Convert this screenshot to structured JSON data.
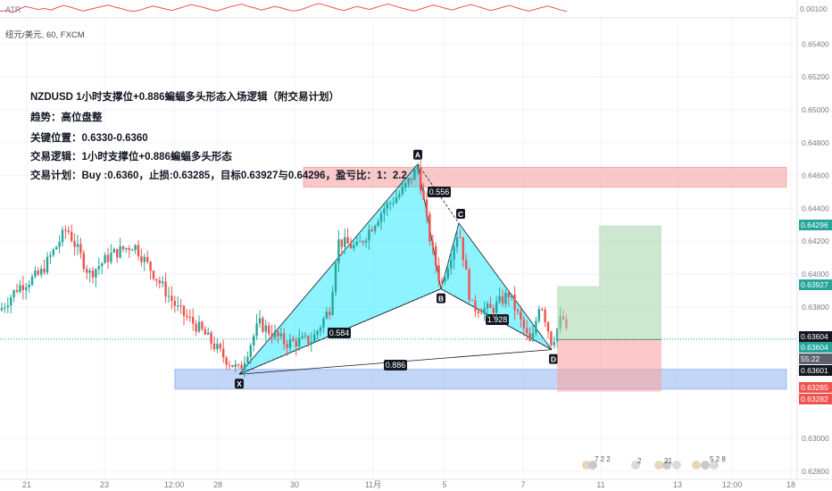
{
  "header": {
    "atr_label": "ATR",
    "symbol_line": "纽元/美元, 60, FXCM"
  },
  "annotations": {
    "title": "NZDUSD 1小时支撑位+0.886蝙蝠多头形态入场逻辑（附交易计划）",
    "trend": "趋势：高位盘整",
    "key_level": "关键位置：0.6330-0.6360",
    "logic": "交易逻辑：1小时支撑位+0.886蝙蝠多头形态",
    "plan": "交易计划：Buy :0.6360，止损:0.63285，目标0.63927与0.64296，盈亏比：1：2.2"
  },
  "atr_axis": {
    "tick": "0.00100"
  },
  "price_labels": [
    {
      "text": "0.64296",
      "color": "#26a69a"
    },
    {
      "text": "0.63927",
      "color": "#26a69a"
    },
    {
      "text": "0.63604",
      "color": "#131722"
    },
    {
      "text": "0.63604",
      "color": "#26a69a"
    },
    {
      "text": "55:22",
      "color": "#5d606b"
    },
    {
      "text": "0.63601",
      "color": "#131722"
    },
    {
      "text": "0.63285",
      "color": "#ef5350"
    },
    {
      "text": "0.63282",
      "color": "#ef5350"
    }
  ],
  "chart_data": {
    "type": "candlestick",
    "symbol": "NZDUSD",
    "timeframe": "60",
    "ylim": [
      0.6275,
      0.6556
    ],
    "y_ticks": [
      "0.65400",
      "0.65200",
      "0.65000",
      "0.64800",
      "0.64600",
      "0.64400",
      "0.64200",
      "0.64000",
      "0.63800",
      "0.63000",
      "0.62800"
    ],
    "x_ticks": [
      "21",
      "23",
      "12:00",
      "28",
      "30",
      "11月",
      "5",
      "7",
      "11",
      "13",
      "12:00",
      "18"
    ],
    "pattern": {
      "name": "Bat",
      "points": [
        {
          "label": "X",
          "price": 0.6339
        },
        {
          "label": "A",
          "price": 0.6467
        },
        {
          "label": "B",
          "price": 0.6391
        },
        {
          "label": "C",
          "price": 0.6431
        },
        {
          "label": "D",
          "price": 0.6354
        }
      ],
      "ratios": [
        "0.556",
        "1.928",
        "0.584",
        "0.886"
      ]
    },
    "zones": {
      "resistance": [
        0.6453,
        0.6465
      ],
      "support": [
        0.633,
        0.6342
      ]
    },
    "trade": {
      "entry": 0.636,
      "stop": 0.63285,
      "target1": 0.63927,
      "target2": 0.64296
    },
    "atr_series": [
      40,
      42,
      38,
      45,
      50,
      47,
      44,
      46,
      43,
      48,
      52,
      49,
      45,
      41,
      44,
      47,
      50,
      53,
      49,
      46,
      42,
      40,
      43,
      47,
      51,
      48,
      45,
      42,
      46,
      50,
      54,
      51,
      48,
      44,
      41,
      45,
      49,
      52,
      55,
      50,
      47,
      43,
      46,
      50,
      48,
      44,
      41,
      43,
      47,
      52,
      56,
      53,
      49,
      45,
      42,
      46,
      50,
      47,
      44,
      48,
      52,
      55,
      51,
      47,
      44,
      41,
      45,
      49,
      53,
      50,
      46,
      43,
      47,
      51,
      54,
      50,
      46,
      42,
      45,
      49,
      52,
      48,
      44,
      41,
      44,
      48,
      51,
      47,
      43,
      40
    ]
  }
}
